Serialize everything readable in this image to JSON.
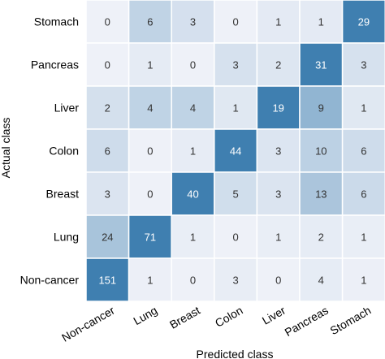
{
  "chart_data": {
    "type": "heatmap",
    "xlabel": "Predicted class",
    "ylabel": "Actual class",
    "x_categories": [
      "Non-cancer",
      "Lung",
      "Breast",
      "Colon",
      "Liver",
      "Pancreas",
      "Stomach"
    ],
    "y_categories": [
      "Stomach",
      "Pancreas",
      "Liver",
      "Colon",
      "Breast",
      "Lung",
      "Non-cancer"
    ],
    "values": [
      [
        0,
        6,
        3,
        0,
        1,
        1,
        29
      ],
      [
        0,
        1,
        0,
        3,
        2,
        31,
        3
      ],
      [
        2,
        4,
        4,
        1,
        19,
        9,
        1
      ],
      [
        6,
        0,
        1,
        44,
        3,
        10,
        6
      ],
      [
        3,
        0,
        40,
        5,
        3,
        13,
        6
      ],
      [
        24,
        71,
        1,
        0,
        1,
        2,
        1
      ],
      [
        151,
        1,
        0,
        3,
        0,
        4,
        1
      ]
    ],
    "colors": {
      "low": "#eef1f8",
      "high": "#3f7fb0",
      "text_dark": "#333333",
      "text_light": "#ffffff",
      "grid": "#ffffff"
    }
  }
}
